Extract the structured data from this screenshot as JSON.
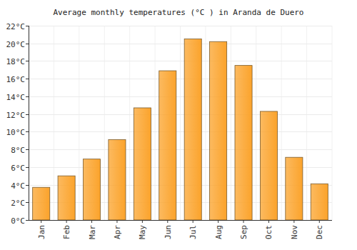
{
  "chart_data": {
    "type": "bar",
    "title": "Average monthly temperatures (°C ) in Aranda de Duero",
    "categories": [
      "Jan",
      "Feb",
      "Mar",
      "Apr",
      "May",
      "Jun",
      "Jul",
      "Aug",
      "Sep",
      "Oct",
      "Nov",
      "Dec"
    ],
    "values": [
      3.7,
      5.0,
      6.9,
      9.1,
      12.7,
      16.9,
      20.5,
      20.2,
      17.5,
      12.3,
      7.1,
      4.1
    ],
    "color": "#fba32b",
    "ylim": [
      0,
      22
    ],
    "yticks": [
      {
        "value": 0,
        "label": "0°C"
      },
      {
        "value": 2,
        "label": "2°C"
      },
      {
        "value": 4,
        "label": "4°C"
      },
      {
        "value": 6,
        "label": "6°C"
      },
      {
        "value": 8,
        "label": "8°C"
      },
      {
        "value": 10,
        "label": "10°C"
      },
      {
        "value": 12,
        "label": "12°C"
      },
      {
        "value": 14,
        "label": "14°C"
      },
      {
        "value": 16,
        "label": "16°C"
      },
      {
        "value": 18,
        "label": "18°C"
      },
      {
        "value": 20,
        "label": "20°C"
      },
      {
        "value": 22,
        "label": "22°C"
      }
    ],
    "grid": true
  }
}
